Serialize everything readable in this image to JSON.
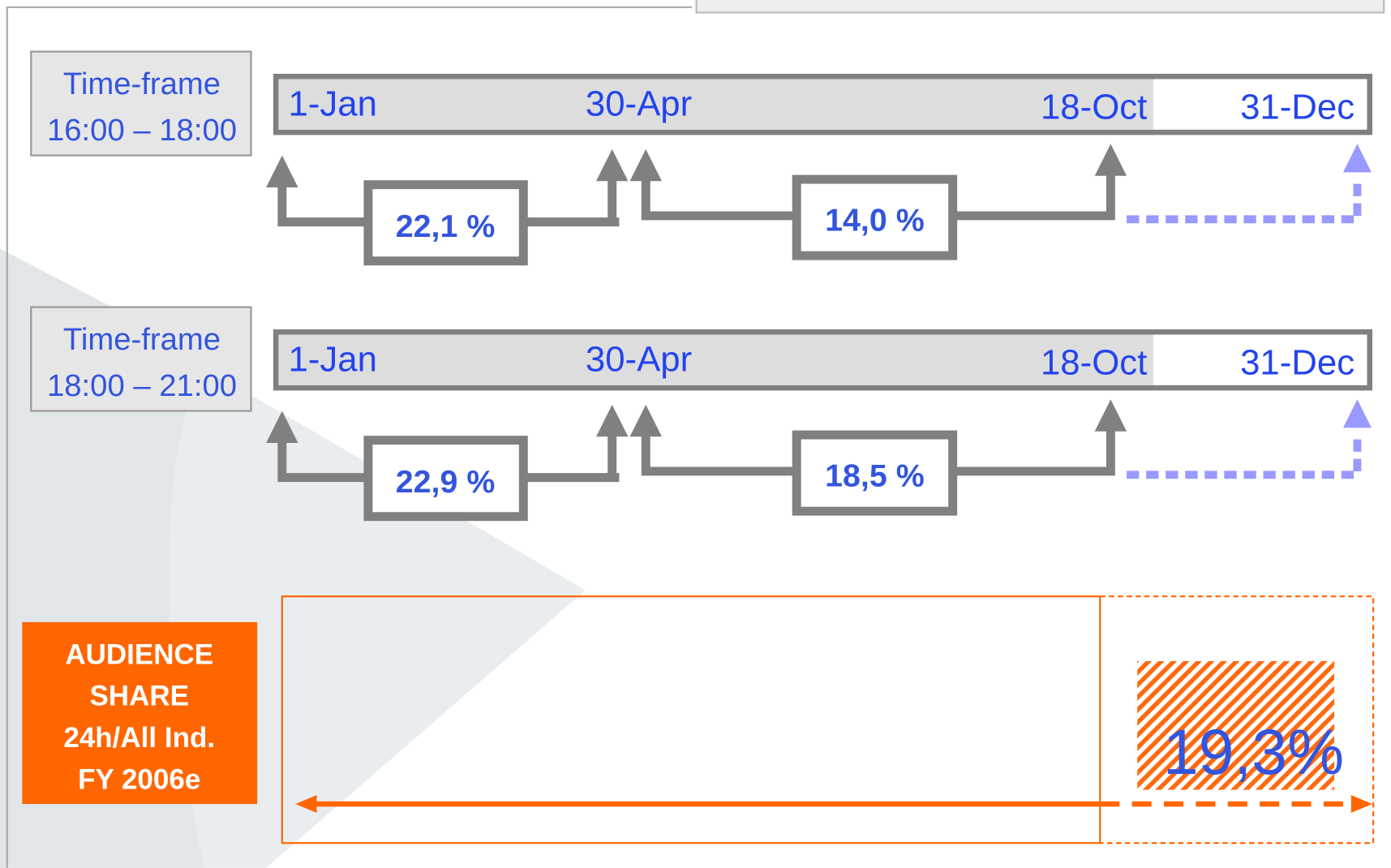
{
  "timelines": [
    {
      "label": [
        "Time-frame",
        "16:00 – 18:00"
      ],
      "dates": [
        "1-Jan",
        "30-Apr",
        "18-Oct",
        "31-Dec"
      ],
      "segments": [
        "22,1 %",
        "14,0 %"
      ]
    },
    {
      "label": [
        "Time-frame",
        "18:00 – 21:00"
      ],
      "dates": [
        "1-Jan",
        "30-Apr",
        "18-Oct",
        "31-Dec"
      ],
      "segments": [
        "22,9 %",
        "18,5 %"
      ]
    }
  ],
  "audience": {
    "label": [
      "AUDIENCE",
      "SHARE",
      "24h/All Ind.",
      "FY 2006e"
    ],
    "value": "19,3%"
  }
}
